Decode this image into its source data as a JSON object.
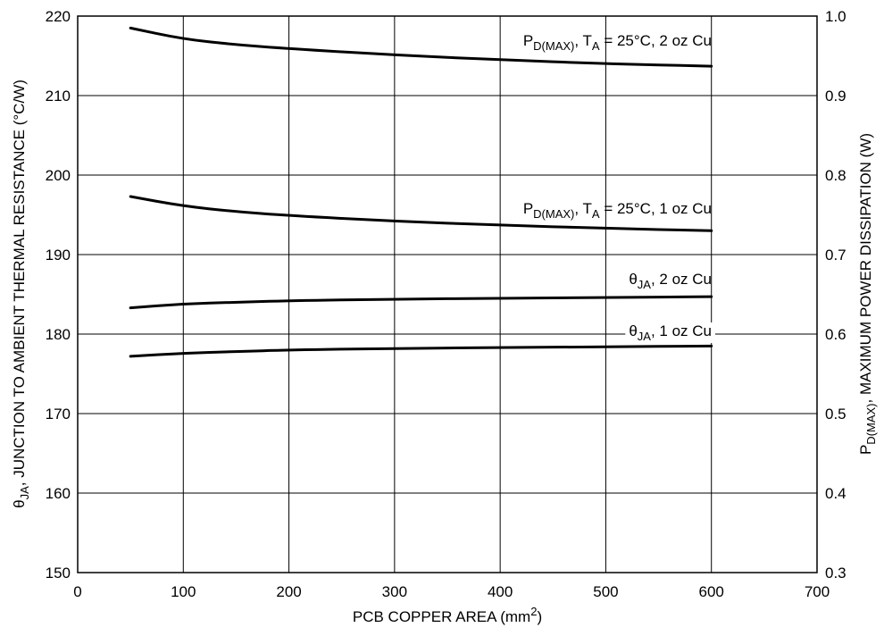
{
  "chart_data": {
    "type": "line",
    "xlabel": "PCB COPPER AREA (mm",
    "xlabel_sup": "2",
    "xlabel_end": ")",
    "ylabel": {
      "symbol": "θ",
      "sub": "JA",
      "text": ", JUNCTION TO AMBIENT THERMAL RESISTANCE (°C/W)"
    },
    "y2label": {
      "main": "P",
      "sub": "D(MAX)",
      "text": ", MAXIMUM POWER DISSIPATION (W)"
    },
    "xlim": [
      0,
      700
    ],
    "ylim": [
      150,
      220
    ],
    "y2lim": [
      0.3,
      1.0
    ],
    "x_ticks": [
      "0",
      "100",
      "200",
      "300",
      "400",
      "500",
      "600",
      "700"
    ],
    "y_ticks": [
      "150",
      "160",
      "170",
      "180",
      "190",
      "200",
      "210",
      "220"
    ],
    "y2_ticks": [
      "0.3",
      "0.4",
      "0.5",
      "0.6",
      "0.7",
      "0.8",
      "0.9",
      "1.0"
    ],
    "grid": true,
    "series": [
      {
        "id": "pd2",
        "axis": "right",
        "label": {
          "main": "P",
          "sub": "D(MAX)",
          "mid": ", T",
          "sub2": "A",
          "tail": " = 25°C, 2 oz Cu"
        },
        "points": [
          [
            50,
            0.985
          ],
          [
            100,
            0.971
          ],
          [
            150,
            0.964
          ],
          [
            200,
            0.959
          ],
          [
            300,
            0.951
          ],
          [
            400,
            0.945
          ],
          [
            500,
            0.94
          ],
          [
            600,
            0.937
          ]
        ]
      },
      {
        "id": "pd1",
        "axis": "right",
        "label": {
          "main": "P",
          "sub": "D(MAX)",
          "mid": ", T",
          "sub2": "A",
          "tail": " = 25°C, 1 oz Cu"
        },
        "points": [
          [
            50,
            0.773
          ],
          [
            100,
            0.761
          ],
          [
            150,
            0.754
          ],
          [
            200,
            0.749
          ],
          [
            300,
            0.742
          ],
          [
            400,
            0.737
          ],
          [
            500,
            0.733
          ],
          [
            600,
            0.73
          ]
        ]
      },
      {
        "id": "th2",
        "axis": "left",
        "label": {
          "main": "θ",
          "sub": "JA",
          "tail": ", 2 oz Cu"
        },
        "points": [
          [
            50,
            183.3
          ],
          [
            100,
            183.8
          ],
          [
            150,
            184.0
          ],
          [
            200,
            184.2
          ],
          [
            300,
            184.4
          ],
          [
            400,
            184.5
          ],
          [
            500,
            184.6
          ],
          [
            600,
            184.7
          ]
        ]
      },
      {
        "id": "th1",
        "axis": "left",
        "label": {
          "main": "θ",
          "sub": "JA",
          "tail": ", 1 oz Cu"
        },
        "points": [
          [
            50,
            177.2
          ],
          [
            100,
            177.6
          ],
          [
            150,
            177.8
          ],
          [
            200,
            178.0
          ],
          [
            300,
            178.2
          ],
          [
            400,
            178.3
          ],
          [
            500,
            178.4
          ],
          [
            600,
            178.5
          ]
        ]
      }
    ]
  }
}
